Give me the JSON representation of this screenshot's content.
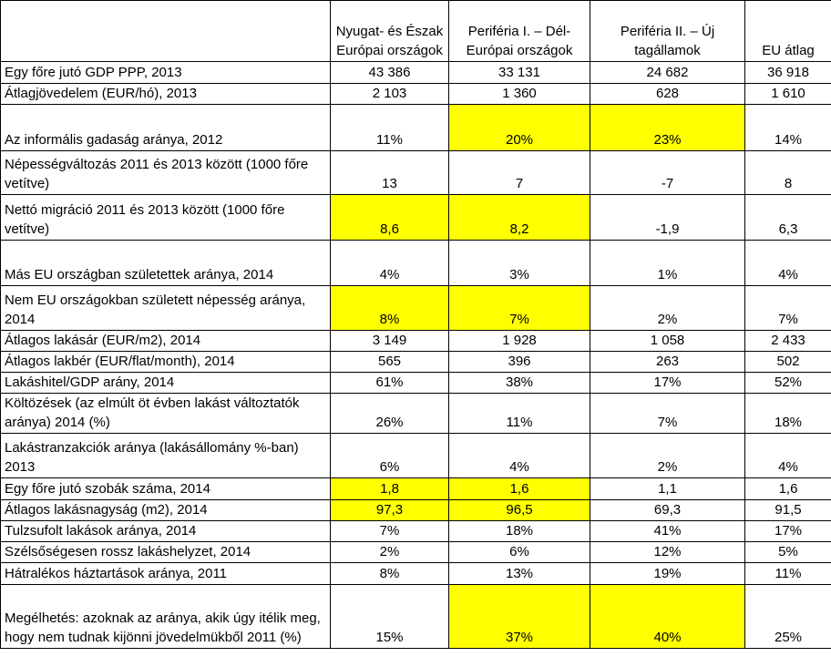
{
  "columns": [
    "",
    "Nyugat- és Észak Európai országok",
    "Periféria I. – Dél-Európai országok",
    "Periféria II. – Új tagállamok",
    "EU átlag"
  ],
  "highlight_color": "#ffff00",
  "rows": [
    {
      "label": "Egy főre jutó GDP PPP, 2013",
      "values": [
        "43 386",
        "33 131",
        "24 682",
        "36 918"
      ],
      "highlight": [
        false,
        false,
        false,
        false
      ]
    },
    {
      "label": "Átlagjövedelem  (EUR/hó), 2013",
      "values": [
        "2 103",
        "1 360",
        "628",
        "1 610"
      ],
      "highlight": [
        false,
        false,
        false,
        false
      ]
    },
    {
      "label": "Az informális gadaság aránya, 2012",
      "values": [
        "11%",
        "20%",
        "23%",
        "14%"
      ],
      "highlight": [
        false,
        true,
        true,
        false
      ]
    },
    {
      "label": "Népességváltozás  2011 és 2013 között (1000 főre vetítve)",
      "values": [
        "13",
        "7",
        "-7",
        "8"
      ],
      "highlight": [
        false,
        false,
        false,
        false
      ]
    },
    {
      "label": "Nettó migráció  2011 és  2013 között (1000 főre vetítve)",
      "values": [
        "8,6",
        "8,2",
        "-1,9",
        "6,3"
      ],
      "highlight": [
        true,
        true,
        false,
        false
      ]
    },
    {
      "label": "Más EU országban születettek aránya, 2014",
      "values": [
        "4%",
        "3%",
        "1%",
        "4%"
      ],
      "highlight": [
        false,
        false,
        false,
        false
      ]
    },
    {
      "label": "Nem EU országokban született népesség aránya, 2014",
      "values": [
        "8%",
        "7%",
        "2%",
        "7%"
      ],
      "highlight": [
        true,
        true,
        false,
        false
      ]
    },
    {
      "label": "Átlagos lakásár (EUR/m2), 2014",
      "values": [
        "3 149",
        "1 928",
        "1 058",
        "2 433"
      ],
      "highlight": [
        false,
        false,
        false,
        false
      ]
    },
    {
      "label": "Átlagos lakbér  (EUR/flat/month), 2014",
      "values": [
        "565",
        "396",
        "263",
        "502"
      ],
      "highlight": [
        false,
        false,
        false,
        false
      ]
    },
    {
      "label": "Lakáshitel/GDP arány, 2014",
      "values": [
        "61%",
        "38%",
        "17%",
        "52%"
      ],
      "highlight": [
        false,
        false,
        false,
        false
      ]
    },
    {
      "label": "Költözések (az elmúlt öt évben lakást változtatók aránya)  2014 (%)",
      "values": [
        "26%",
        "11%",
        "7%",
        "18%"
      ],
      "highlight": [
        false,
        false,
        false,
        false
      ]
    },
    {
      "label": "Lakástranzakciók aránya (lakásállomány %-ban) 2013",
      "values": [
        "6%",
        "4%",
        "2%",
        "4%"
      ],
      "highlight": [
        false,
        false,
        false,
        false
      ]
    },
    {
      "label": "Egy főre jutó szobák száma, 2014",
      "values": [
        "1,8",
        "1,6",
        "1,1",
        "1,6"
      ],
      "highlight": [
        true,
        true,
        false,
        false
      ]
    },
    {
      "label": "Átlagos lakásnagyság (m2), 2014",
      "values": [
        "97,3",
        "96,5",
        "69,3",
        "91,5"
      ],
      "highlight": [
        true,
        true,
        false,
        false
      ]
    },
    {
      "label": "Tulzsufolt lakások aránya, 2014",
      "values": [
        "7%",
        "18%",
        "41%",
        "17%"
      ],
      "highlight": [
        false,
        false,
        false,
        false
      ]
    },
    {
      "label": "Szélsőségesen rossz lakáshelyzet, 2014",
      "values": [
        "2%",
        "6%",
        "12%",
        "5%"
      ],
      "highlight": [
        false,
        false,
        false,
        false
      ]
    },
    {
      "label": "Hátralékos háztartások aránya, 2011",
      "values": [
        "8%",
        "13%",
        "19%",
        "11%"
      ],
      "highlight": [
        false,
        false,
        false,
        false
      ]
    },
    {
      "label": "Megélhetés: azoknak az aránya, akik úgy itélik meg, hogy nem tudnak kijönni jövedelmükből  2011 (%)",
      "values": [
        "15%",
        "37%",
        "40%",
        "25%"
      ],
      "highlight": [
        false,
        true,
        true,
        false
      ]
    }
  ]
}
